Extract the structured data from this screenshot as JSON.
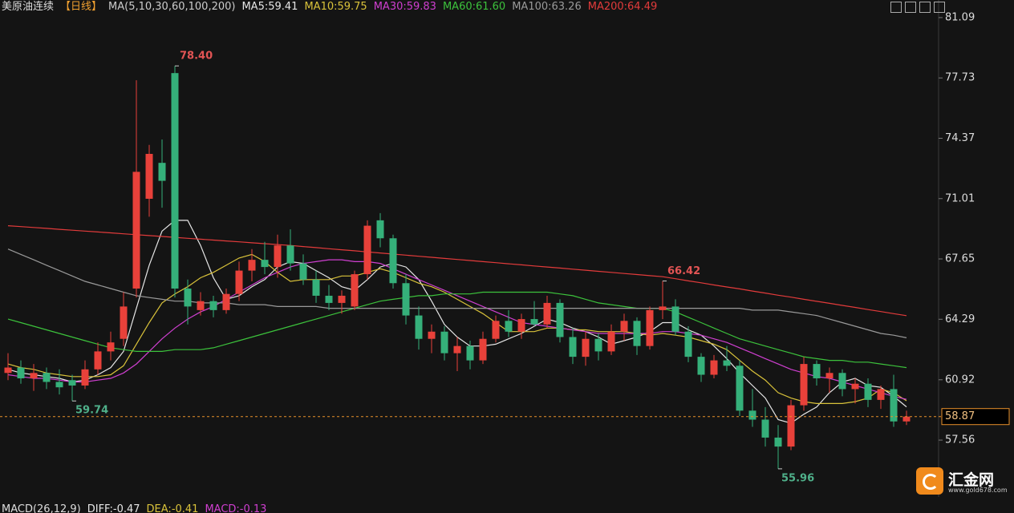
{
  "chart_data": {
    "type": "candlestick",
    "title": "美原油连续",
    "period": "【日线】",
    "indicator": "MA(5,10,30,60,100,200)",
    "up_color": "#e8413a",
    "down_color": "#35b07a",
    "open": [
      61.3,
      61.6,
      61.0,
      61.3,
      60.8,
      60.9,
      60.6,
      61.5,
      62.5,
      63.2,
      66.0,
      71.0,
      73.0,
      78.0,
      66.0,
      64.8,
      65.3,
      64.8,
      65.7,
      67.0,
      67.6,
      67.2,
      68.4,
      67.4,
      66.5,
      65.6,
      65.2,
      65.0,
      66.8,
      69.8,
      68.8,
      66.3,
      64.5,
      63.2,
      63.6,
      62.4,
      62.8,
      62.0,
      63.2,
      64.2,
      63.6,
      64.3,
      64.0,
      65.2,
      63.3,
      62.2,
      63.2,
      62.5,
      63.6,
      64.2,
      62.8,
      64.8,
      65.0,
      63.6,
      62.2,
      61.2,
      62.0,
      61.7,
      59.2,
      58.7,
      57.7,
      57.2,
      59.5,
      61.8,
      61.0,
      61.3,
      60.4,
      60.7,
      59.8,
      60.4,
      58.6
    ],
    "high": [
      62.4,
      62.0,
      61.8,
      61.6,
      61.5,
      61.2,
      62.0,
      63.0,
      63.6,
      65.8,
      77.6,
      74.0,
      74.3,
      78.4,
      66.5,
      65.8,
      65.6,
      66.0,
      67.5,
      68.2,
      68.6,
      69.0,
      69.3,
      67.9,
      67.0,
      66.2,
      65.9,
      67.0,
      69.8,
      70.2,
      69.0,
      66.8,
      65.0,
      64.0,
      63.9,
      63.3,
      63.1,
      63.6,
      64.5,
      64.8,
      64.6,
      65.3,
      65.6,
      65.4,
      63.8,
      63.6,
      63.5,
      64.0,
      64.6,
      64.4,
      65.0,
      66.42,
      65.4,
      63.9,
      62.4,
      62.3,
      62.8,
      62.0,
      60.4,
      59.4,
      58.4,
      59.8,
      62.2,
      62.0,
      61.6,
      61.5,
      61.0,
      61.0,
      60.6,
      61.2,
      59.2
    ],
    "low": [
      60.9,
      60.7,
      60.3,
      60.4,
      60.1,
      59.74,
      60.4,
      61.2,
      62.0,
      62.8,
      65.5,
      70.0,
      70.5,
      65.5,
      64.0,
      64.5,
      64.4,
      64.6,
      65.3,
      66.4,
      66.8,
      66.6,
      67.0,
      66.2,
      65.2,
      64.8,
      64.6,
      64.8,
      66.5,
      68.3,
      66.0,
      64.0,
      62.6,
      62.4,
      62.0,
      61.4,
      61.5,
      61.8,
      63.0,
      63.3,
      63.2,
      63.9,
      63.8,
      63.0,
      61.8,
      61.7,
      62.0,
      62.3,
      63.1,
      62.3,
      62.6,
      64.3,
      63.4,
      61.9,
      60.8,
      61.0,
      61.4,
      58.9,
      58.3,
      57.2,
      55.96,
      57.0,
      59.2,
      60.6,
      60.2,
      60.0,
      59.6,
      59.4,
      59.3,
      58.3,
      58.4
    ],
    "close": [
      61.6,
      61.0,
      61.3,
      60.8,
      60.5,
      60.6,
      61.5,
      62.5,
      63.0,
      65.0,
      72.5,
      73.5,
      72.0,
      66.0,
      65.0,
      65.3,
      64.8,
      65.7,
      67.0,
      67.6,
      67.2,
      68.4,
      67.4,
      66.5,
      65.6,
      65.2,
      65.6,
      66.8,
      69.5,
      68.8,
      66.3,
      64.5,
      63.2,
      63.6,
      62.4,
      62.8,
      62.0,
      63.2,
      64.2,
      63.6,
      64.3,
      64.0,
      65.2,
      63.3,
      62.2,
      63.2,
      62.5,
      63.6,
      64.2,
      62.8,
      64.8,
      65.0,
      63.6,
      62.2,
      61.2,
      62.0,
      61.7,
      59.2,
      58.7,
      57.7,
      57.2,
      59.5,
      61.8,
      61.0,
      61.3,
      60.4,
      60.7,
      59.8,
      60.4,
      58.6,
      58.87
    ],
    "series": [
      {
        "name": "MA5:59.41",
        "color": "#e6e6e6",
        "values": [
          61.5,
          61.3,
          61.2,
          61.1,
          61.0,
          60.8,
          60.9,
          61.2,
          61.6,
          62.5,
          64.9,
          67.3,
          69.2,
          69.8,
          69.8,
          68.4,
          66.6,
          65.4,
          65.6,
          66.1,
          66.5,
          67.2,
          67.5,
          67.4,
          67.0,
          66.6,
          66.1,
          65.9,
          66.5,
          67.2,
          67.4,
          67.2,
          66.5,
          65.3,
          64.0,
          63.3,
          62.8,
          62.8,
          62.9,
          63.2,
          63.5,
          63.9,
          64.3,
          64.1,
          63.8,
          63.6,
          63.3,
          62.9,
          63.1,
          63.3,
          63.6,
          64.1,
          64.1,
          63.7,
          63.4,
          62.8,
          62.1,
          61.3,
          60.6,
          59.9,
          58.7,
          58.5,
          59.0,
          59.4,
          60.2,
          60.8,
          61.0,
          60.6,
          60.5,
          60.0,
          59.41
        ]
      },
      {
        "name": "MA10:59.75",
        "color": "#d9c23a",
        "values": [
          61.8,
          61.6,
          61.5,
          61.3,
          61.2,
          61.1,
          61.1,
          61.1,
          61.2,
          61.7,
          62.9,
          64.1,
          65.2,
          65.7,
          66.1,
          66.6,
          66.9,
          67.3,
          67.7,
          67.9,
          67.5,
          66.9,
          66.4,
          66.5,
          66.5,
          66.5,
          66.7,
          66.7,
          66.9,
          67.1,
          66.9,
          66.6,
          66.3,
          66.1,
          65.8,
          65.4,
          65.0,
          64.6,
          64.1,
          63.6,
          63.6,
          63.6,
          63.8,
          63.8,
          63.7,
          63.7,
          63.6,
          63.6,
          63.6,
          63.5,
          63.4,
          63.5,
          63.4,
          63.3,
          63.1,
          62.9,
          62.6,
          62.0,
          61.4,
          60.9,
          60.2,
          59.9,
          59.7,
          59.6,
          59.6,
          59.6,
          59.7,
          59.9,
          60.4,
          60.2,
          59.75
        ]
      },
      {
        "name": "MA30:59.83",
        "color": "#cf3fd0",
        "values": [
          61.2,
          61.1,
          61.0,
          61.0,
          60.9,
          60.8,
          60.8,
          60.9,
          61.0,
          61.3,
          61.8,
          62.5,
          63.2,
          63.8,
          64.3,
          64.7,
          65.0,
          65.4,
          65.8,
          66.2,
          66.6,
          66.9,
          67.2,
          67.4,
          67.5,
          67.6,
          67.6,
          67.5,
          67.5,
          67.4,
          67.1,
          66.8,
          66.5,
          66.2,
          65.9,
          65.6,
          65.3,
          65.0,
          64.7,
          64.4,
          64.1,
          64.0,
          63.9,
          63.8,
          63.7,
          63.6,
          63.5,
          63.5,
          63.5,
          63.5,
          63.5,
          63.6,
          63.6,
          63.5,
          63.4,
          63.2,
          63.0,
          62.7,
          62.4,
          62.1,
          61.8,
          61.5,
          61.3,
          61.1,
          61.0,
          60.8,
          60.6,
          60.4,
          60.2,
          60.0,
          59.83
        ]
      },
      {
        "name": "MA60:61.60",
        "color": "#3cc23c",
        "values": [
          64.3,
          64.1,
          63.9,
          63.7,
          63.5,
          63.3,
          63.1,
          62.9,
          62.7,
          62.6,
          62.5,
          62.5,
          62.5,
          62.6,
          62.6,
          62.6,
          62.7,
          62.9,
          63.1,
          63.3,
          63.5,
          63.7,
          63.9,
          64.1,
          64.3,
          64.5,
          64.7,
          64.9,
          65.1,
          65.3,
          65.4,
          65.5,
          65.6,
          65.6,
          65.7,
          65.7,
          65.7,
          65.8,
          65.8,
          65.8,
          65.8,
          65.8,
          65.8,
          65.7,
          65.6,
          65.4,
          65.2,
          65.1,
          65.0,
          64.9,
          64.9,
          64.9,
          64.7,
          64.4,
          64.1,
          63.8,
          63.5,
          63.2,
          63.0,
          62.8,
          62.6,
          62.4,
          62.2,
          62.1,
          62.0,
          62.0,
          61.9,
          61.9,
          61.8,
          61.7,
          61.6
        ]
      },
      {
        "name": "MA100:63.26",
        "color": "#9a9a9a",
        "values": [
          68.2,
          67.9,
          67.6,
          67.3,
          67.0,
          66.7,
          66.4,
          66.2,
          66.0,
          65.8,
          65.6,
          65.5,
          65.4,
          65.3,
          65.3,
          65.2,
          65.2,
          65.2,
          65.1,
          65.1,
          65.1,
          65.0,
          65.0,
          65.0,
          65.0,
          64.9,
          64.9,
          64.9,
          64.9,
          64.9,
          64.9,
          64.9,
          64.9,
          64.9,
          64.9,
          64.9,
          64.9,
          64.9,
          64.9,
          64.9,
          64.9,
          64.9,
          64.9,
          64.9,
          64.9,
          64.9,
          64.9,
          64.9,
          64.9,
          64.9,
          64.9,
          64.9,
          64.9,
          64.9,
          64.9,
          64.9,
          64.9,
          64.9,
          64.8,
          64.8,
          64.8,
          64.7,
          64.6,
          64.5,
          64.3,
          64.1,
          63.9,
          63.7,
          63.5,
          63.4,
          63.26
        ]
      },
      {
        "name": "MA200:64.49",
        "color": "#e23b3b",
        "values": [
          69.5,
          69.45,
          69.4,
          69.35,
          69.3,
          69.25,
          69.2,
          69.15,
          69.1,
          69.05,
          69.0,
          68.95,
          68.9,
          68.85,
          68.8,
          68.75,
          68.7,
          68.65,
          68.6,
          68.55,
          68.5,
          68.45,
          68.4,
          68.34,
          68.28,
          68.22,
          68.16,
          68.1,
          68.04,
          67.98,
          67.92,
          67.86,
          67.8,
          67.74,
          67.68,
          67.62,
          67.56,
          67.5,
          67.44,
          67.38,
          67.32,
          67.26,
          67.2,
          67.14,
          67.08,
          67.02,
          66.96,
          66.9,
          66.84,
          66.78,
          66.72,
          66.66,
          66.55,
          66.43,
          66.32,
          66.2,
          66.09,
          65.98,
          65.86,
          65.75,
          65.63,
          65.52,
          65.4,
          65.29,
          65.18,
          65.06,
          64.95,
          64.83,
          64.72,
          64.6,
          64.49
        ]
      }
    ],
    "ylim": [
      54.75,
      82.07
    ],
    "yticks": [
      81.09,
      77.73,
      74.37,
      71.01,
      67.65,
      64.29,
      60.92,
      57.56
    ],
    "last_price": 58.87,
    "last_price_color": "#e8902a",
    "annotations": [
      {
        "label": "78.40",
        "color": "#e25454"
      },
      {
        "label": "59.74",
        "color": "#4fb08a"
      },
      {
        "label": "66.42",
        "color": "#e25454"
      },
      {
        "label": "55.96",
        "color": "#4fb08a"
      }
    ]
  },
  "macd": {
    "label": "MACD(26,12,9)",
    "items": [
      {
        "text": "DIFF:-0.47",
        "color": "#e6e6e6"
      },
      {
        "text": "DEA:-0.41",
        "color": "#d9c23a"
      },
      {
        "text": "MACD:-0.13",
        "color": "#cf3fd0"
      }
    ]
  },
  "logo": {
    "name": "汇金网",
    "url": "www.gold678.com"
  }
}
